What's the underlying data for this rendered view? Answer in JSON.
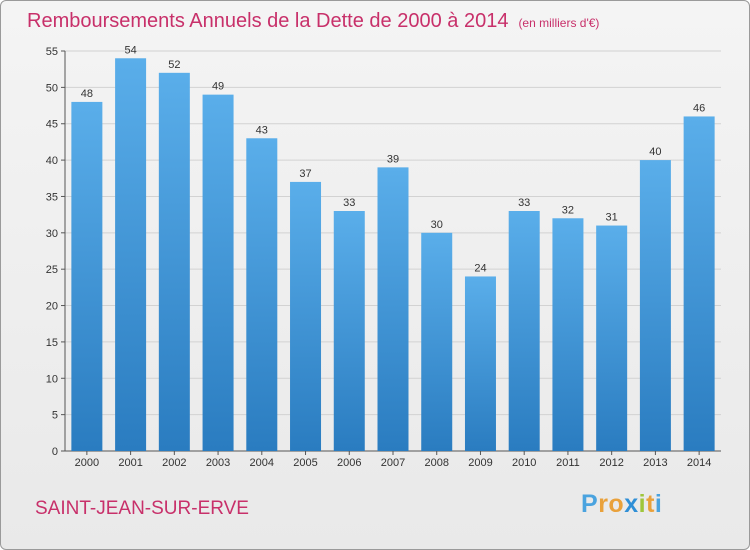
{
  "title": "Remboursements Annuels de la Dette de 2000 à 2014",
  "unit": "(en milliers d'€)",
  "city": "SAINT-JEAN-SUR-ERVE",
  "logo": {
    "letters": [
      "P",
      "r",
      "o",
      "x",
      "i",
      "t",
      "i"
    ],
    "colors": [
      "#4aa3df",
      "#e9a13b",
      "#e9a13b",
      "#2f8fd6",
      "#9fc63b",
      "#e9a13b",
      "#4aa3df"
    ]
  },
  "colors": {
    "bar_top": "#5aaeea",
    "bar_bottom": "#2a7cc0",
    "title": "#c8306a"
  },
  "chart_data": {
    "type": "bar",
    "title": "Remboursements Annuels de la Dette de 2000 à 2014",
    "xlabel": "",
    "ylabel": "en milliers d'€",
    "ylim": [
      0,
      55
    ],
    "yticks": [
      0,
      5,
      10,
      15,
      20,
      25,
      30,
      35,
      40,
      45,
      50,
      55
    ],
    "grid": true,
    "categories": [
      "2000",
      "2001",
      "2002",
      "2003",
      "2004",
      "2005",
      "2006",
      "2007",
      "2008",
      "2009",
      "2010",
      "2011",
      "2012",
      "2013",
      "2014"
    ],
    "values": [
      48,
      54,
      52,
      49,
      43,
      37,
      33,
      39,
      30,
      24,
      33,
      32,
      31,
      40,
      46
    ]
  }
}
